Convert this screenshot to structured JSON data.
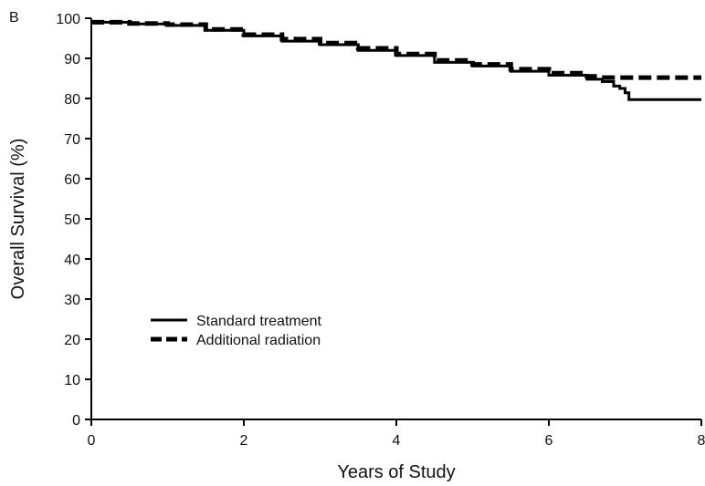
{
  "chart_data": {
    "type": "line",
    "panel_label": "B",
    "title": "",
    "xlabel": "Years of Study",
    "ylabel": "Overall Survival (%)",
    "xlim": [
      0,
      8
    ],
    "ylim": [
      0,
      100
    ],
    "xticks": [
      "0",
      "2",
      "4",
      "6",
      "8"
    ],
    "yticks": [
      "0",
      "10",
      "20",
      "30",
      "40",
      "50",
      "60",
      "70",
      "80",
      "90",
      "100"
    ],
    "grid": false,
    "legend_position": "lower-left",
    "series": [
      {
        "name": "Standard treatment",
        "style": "solid",
        "color": "#000000",
        "x": [
          0,
          0.5,
          1.0,
          1.5,
          2.0,
          2.5,
          3.0,
          3.5,
          4.0,
          4.5,
          5.0,
          5.5,
          6.0,
          6.5,
          6.7,
          6.85,
          6.93,
          7.0,
          7.05,
          8.0
        ],
        "y": [
          99,
          98.6,
          98.2,
          97.0,
          95.6,
          94.3,
          93.4,
          92.0,
          90.7,
          89.0,
          88.1,
          86.8,
          85.8,
          84.8,
          84.2,
          83.1,
          82.5,
          81.4,
          79.7,
          79.7
        ]
      },
      {
        "name": "Additional radiation",
        "style": "dashed",
        "color": "#000000",
        "x": [
          0,
          0.5,
          1.0,
          1.5,
          2.0,
          2.5,
          3.0,
          3.5,
          4.0,
          4.5,
          5.0,
          5.5,
          6.0,
          6.5,
          6.6,
          8.0
        ],
        "y": [
          99,
          98.7,
          98.4,
          97.2,
          95.9,
          94.8,
          93.8,
          92.5,
          91.1,
          89.5,
          88.5,
          87.3,
          86.3,
          85.5,
          85.2,
          85.2
        ]
      }
    ]
  }
}
